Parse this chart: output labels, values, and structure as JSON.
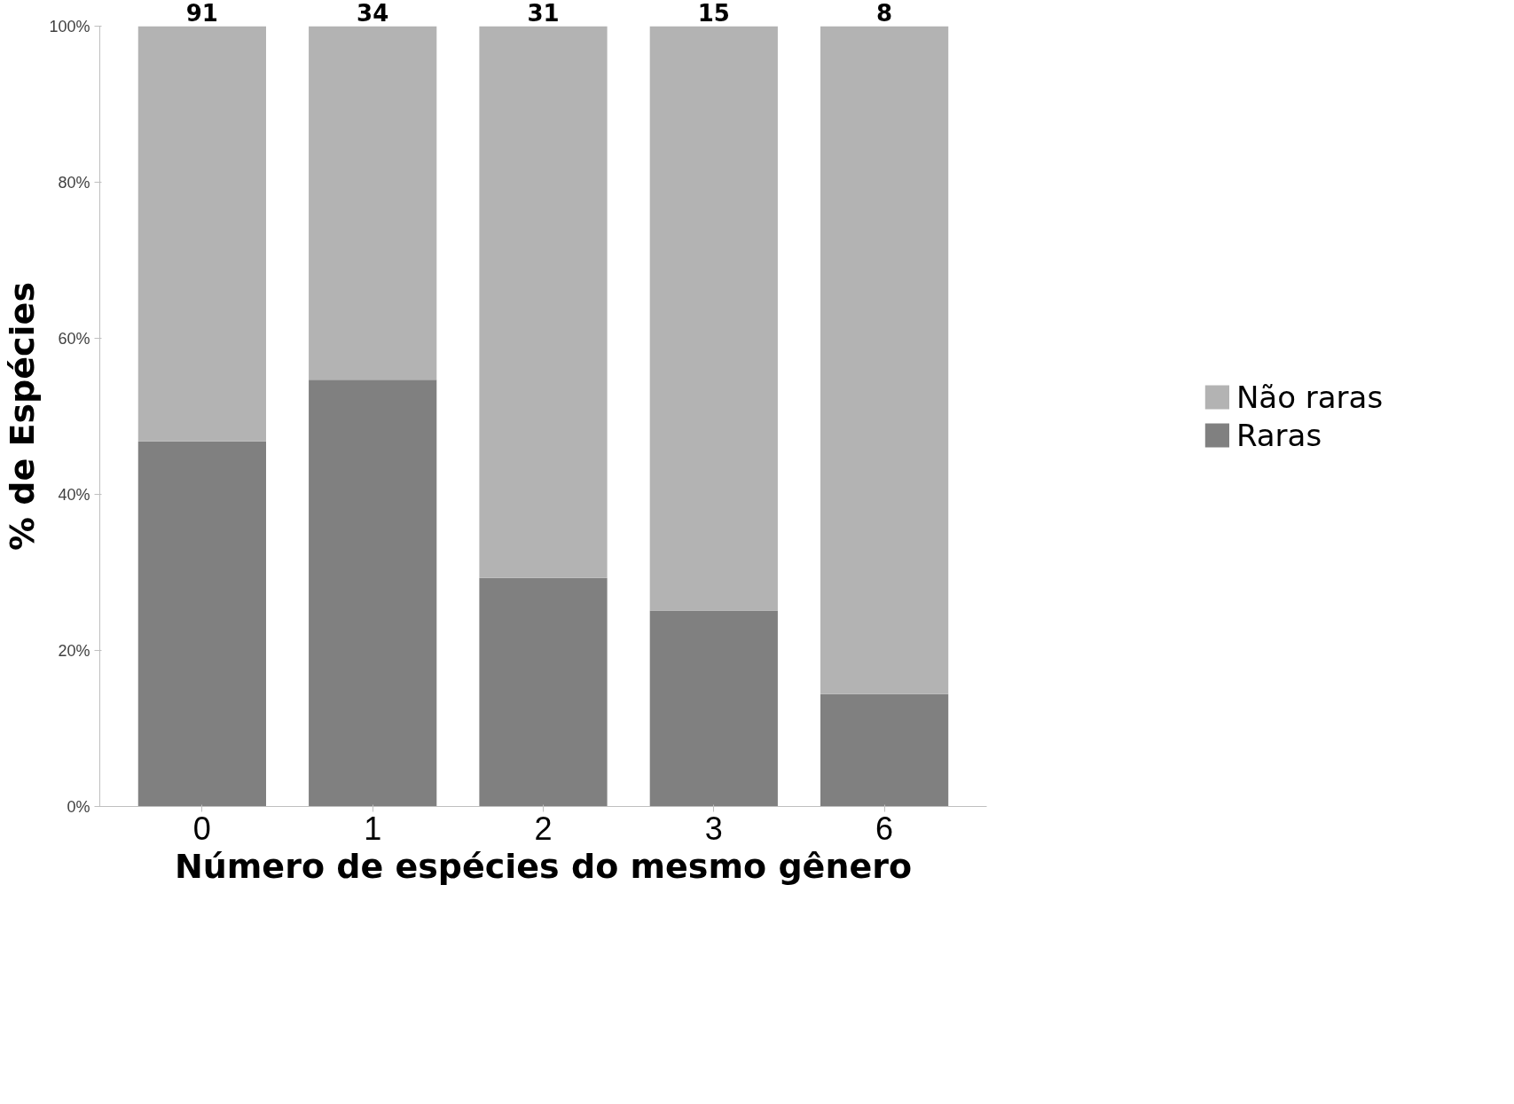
{
  "chart_data": {
    "type": "bar",
    "stacked": true,
    "xlabel": "Número de espécies do mesmo gênero",
    "ylabel": "% de Espécies",
    "categories": [
      "0",
      "1",
      "2",
      "3",
      "6"
    ],
    "series": [
      {
        "name": "Raras",
        "color": "#808080",
        "values": [
          46.8,
          54.7,
          29.3,
          25.1,
          14.4
        ]
      },
      {
        "name": "Não raras",
        "color": "#b3b3b3",
        "values": [
          53.2,
          45.3,
          70.7,
          74.9,
          85.6
        ]
      }
    ],
    "annotations": [
      "91",
      "34",
      "31",
      "15",
      "8"
    ],
    "ylim": [
      0,
      100
    ],
    "yticks": [
      {
        "value": 0,
        "label": "0%"
      },
      {
        "value": 20,
        "label": "20%"
      },
      {
        "value": 40,
        "label": "40%"
      },
      {
        "value": 60,
        "label": "60%"
      },
      {
        "value": 80,
        "label": "80%"
      },
      {
        "value": 100,
        "label": "100%"
      }
    ],
    "grid": false,
    "legend": "right"
  }
}
